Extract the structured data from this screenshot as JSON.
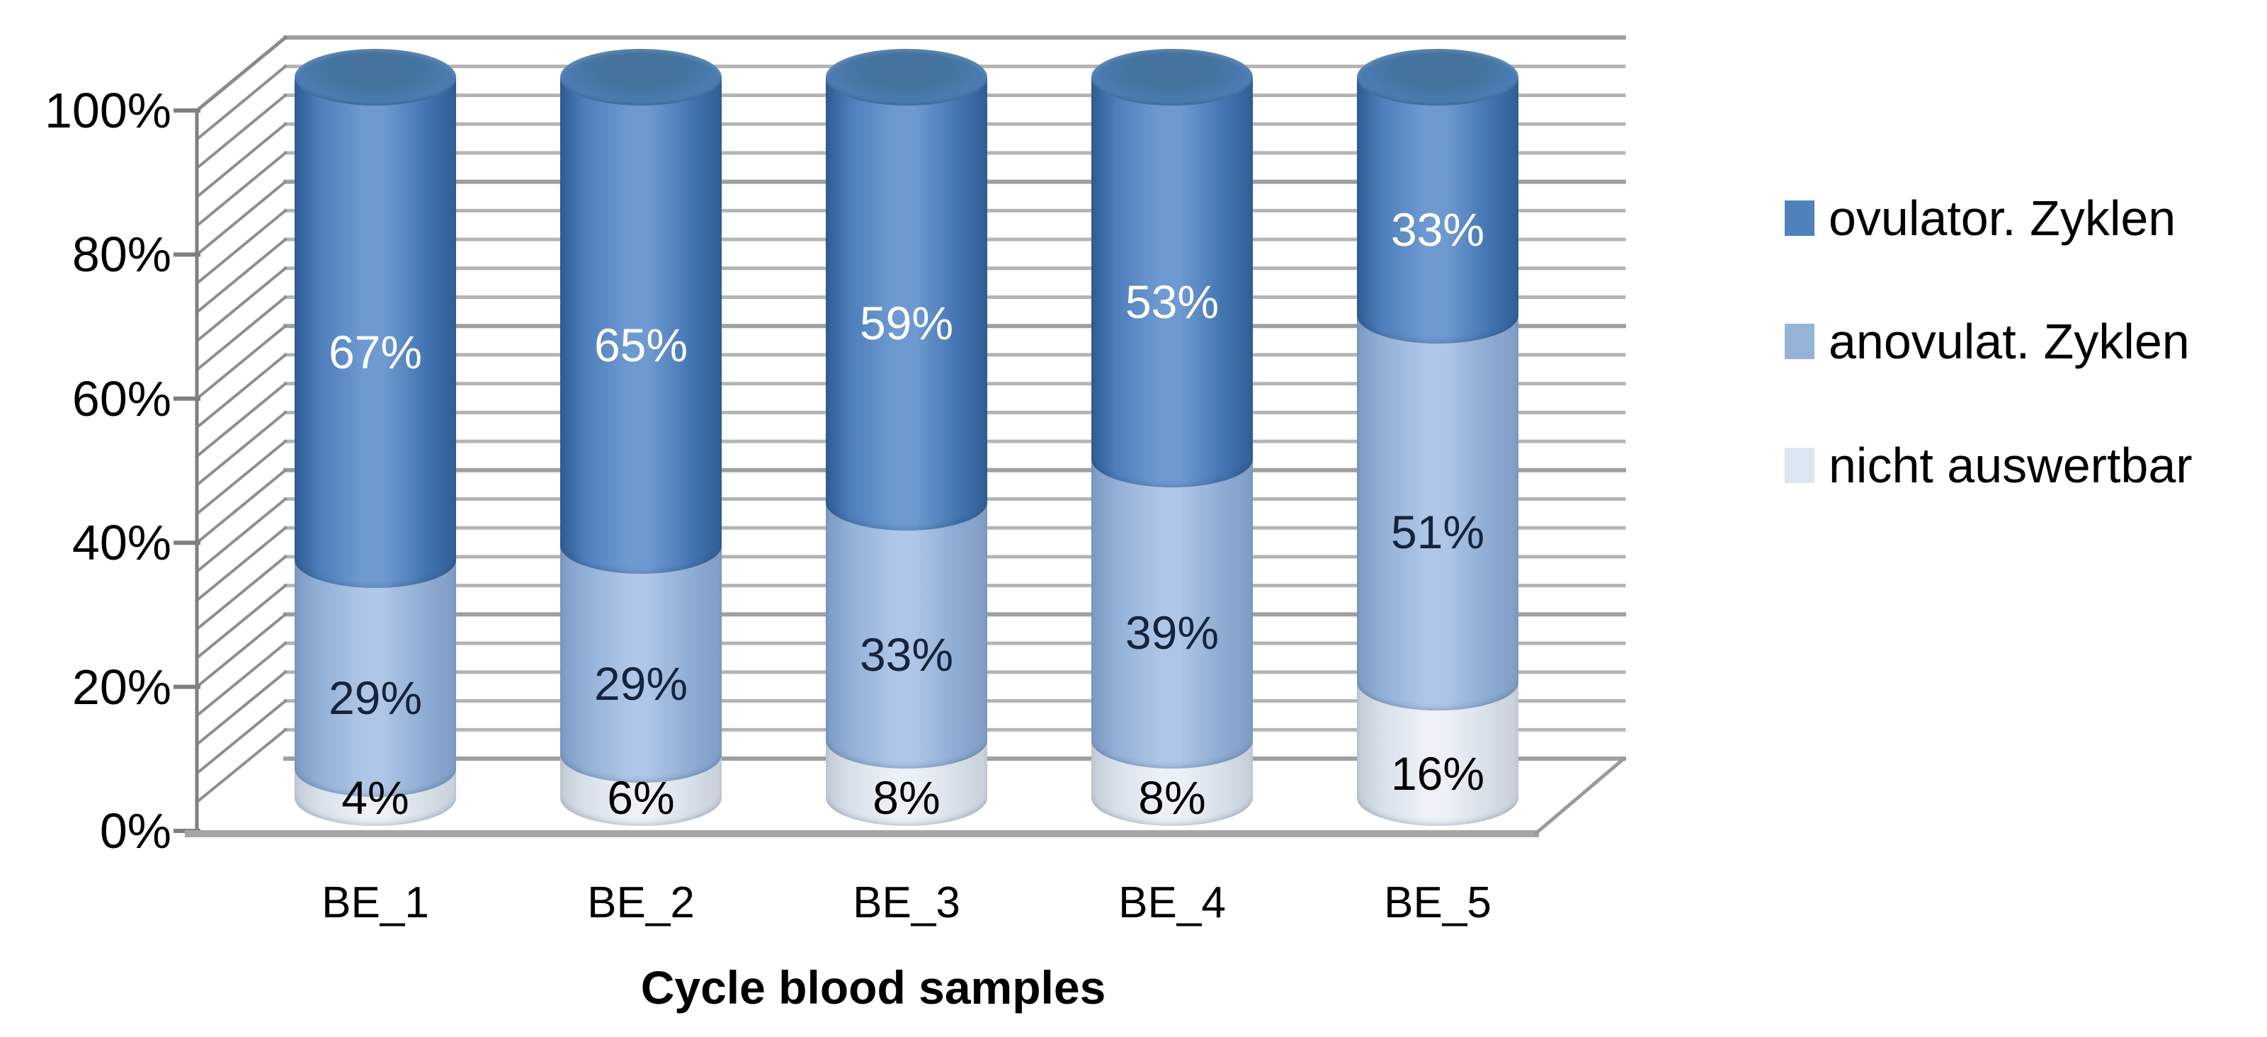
{
  "chart_data": {
    "type": "bar",
    "subtype": "3d-cylinder-100pct-stacked",
    "title": "",
    "xlabel": "Cycle blood samples",
    "ylabel": "",
    "categories": [
      "BE_1",
      "BE_2",
      "BE_3",
      "BE_4",
      "BE_5"
    ],
    "series": [
      {
        "name": "ovulator. Zyklen",
        "color": "#4f81bd",
        "label_color": "#ffffff",
        "values": [
          67,
          65,
          59,
          53,
          33
        ]
      },
      {
        "name": "anovulat. Zyklen",
        "color": "#95b3d7",
        "label_color": "#15233c",
        "values": [
          29,
          29,
          33,
          39,
          51
        ]
      },
      {
        "name": "nicht auswertbar",
        "color": "#dce6f1",
        "label_color": "#000000",
        "values": [
          4,
          6,
          8,
          8,
          16
        ]
      }
    ],
    "stack_order_bottom_to_top": [
      2,
      1,
      0
    ],
    "value_suffix": "%",
    "yticks": [
      "0%",
      "20%",
      "40%",
      "60%",
      "80%",
      "100%"
    ],
    "ylim": [
      0,
      100
    ],
    "grid": true,
    "gridline_color": "#b4b4b4",
    "wall_hatch_color": "#8f8f8f",
    "axis_color": "#7f7f7f",
    "floor_edge_color": "#a6a6a6",
    "legend_position": "right",
    "background_color": "#ffffff"
  }
}
